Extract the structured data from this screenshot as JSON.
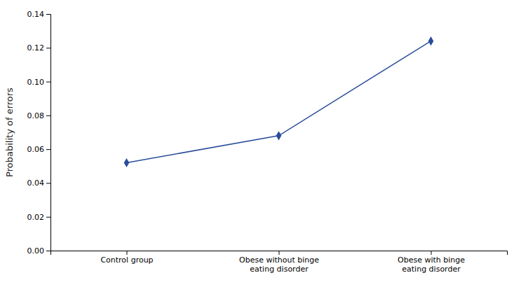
{
  "chart_data": {
    "type": "line",
    "categories": [
      "Control group",
      "Obese without binge\neating disorder",
      "Obese with binge\neating disorder"
    ],
    "values": [
      0.052,
      0.068,
      0.124
    ],
    "ylabel": "Probability of errors",
    "ylim": [
      0.0,
      0.14
    ],
    "yticks": [
      {
        "value": 0.0,
        "label": "0.00"
      },
      0.02,
      0.04,
      0.06,
      0.08,
      {
        "value": 0.1,
        "label": "0.10"
      },
      0.12,
      0.14
    ],
    "color": "#2a4d9b",
    "marker": "diamond",
    "grid": false
  }
}
